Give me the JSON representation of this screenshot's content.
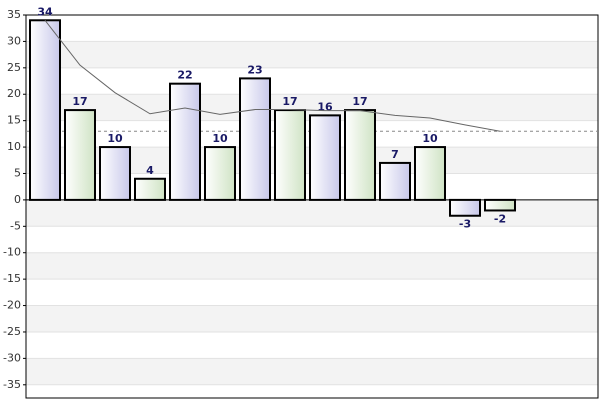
{
  "chart_data": {
    "type": "bar",
    "series": [
      {
        "type": "bar",
        "colors": [
          "#c8c8ea",
          "#cfe3c4"
        ],
        "values": [
          34,
          17,
          10,
          4,
          22,
          10,
          23,
          17,
          16,
          17,
          7,
          10,
          -3,
          -2
        ]
      },
      {
        "type": "line",
        "color": "#666666",
        "values": [
          34,
          25.5,
          20.3,
          16.3,
          17.4,
          16.2,
          17.1,
          17.1,
          16.9,
          16.9,
          16,
          15.5,
          14.2,
          13
        ]
      }
    ],
    "reference_line": 13,
    "ylim": [
      -37.5,
      35
    ],
    "yticks": [
      -35,
      -30,
      -25,
      -20,
      -15,
      -10,
      -5,
      0,
      5,
      10,
      15,
      20,
      25,
      30,
      35
    ],
    "grid": true
  }
}
